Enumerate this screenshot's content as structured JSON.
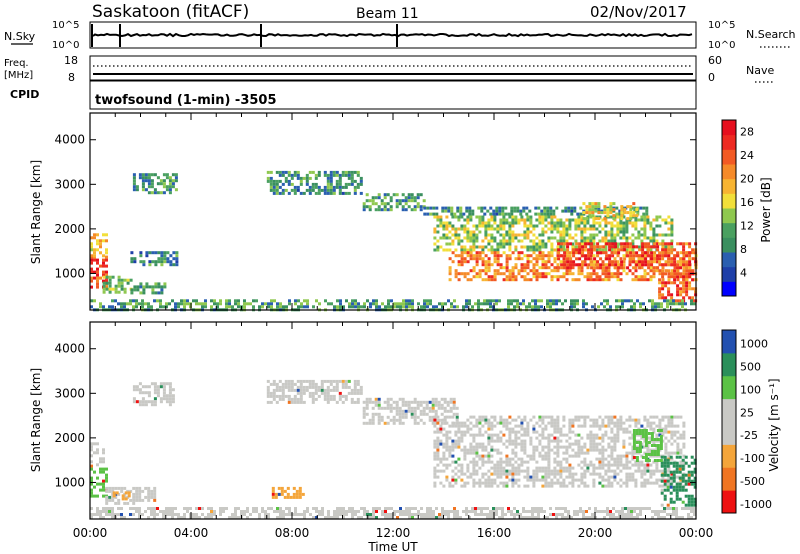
{
  "header": {
    "station": "Saskatoon (fitACF)",
    "beam": "Beam 11",
    "date": "02/Nov/2017"
  },
  "top_panels": {
    "nsky_label": "N.Sky",
    "nsky_ticks": [
      "10^5",
      "10^0"
    ],
    "nsearch_label": "N.Search",
    "nsearch_ticks": [
      "10^5",
      "10^0"
    ],
    "freq_label": "Freq.",
    "freq_unit": "[MHz]",
    "freq_ticks": [
      "18",
      "8"
    ],
    "nave_label": "Nave",
    "nave_ticks": [
      "60",
      "0"
    ],
    "cpid_label": "CPID",
    "cpid_value": "twofsound (1-min) -3505"
  },
  "colors": {
    "power_scale": [
      "#0000ff",
      "#1e3fa8",
      "#2a5fb0",
      "#3a8f5f",
      "#4aa060",
      "#8fc84f",
      "#f2df3a",
      "#f7b432",
      "#f58a29",
      "#f25a24",
      "#ee2a22",
      "#e60f1f"
    ],
    "velocity_scale": [
      "#ee1111",
      "#f07522",
      "#f4a53a",
      "#c9c9c5",
      "#c9c9c5",
      "#5bc245",
      "#2a8f5a",
      "#2250b0"
    ]
  },
  "chart_data": [
    {
      "type": "heatmap",
      "panel": "power",
      "ylabel": "Slant Range [km]",
      "yticks": [
        1000,
        2000,
        3000,
        4000
      ],
      "ylim": [
        180,
        4600
      ],
      "xlim": [
        0,
        24
      ],
      "xtick_labels": [
        "00:00",
        "04:00",
        "08:00",
        "12:00",
        "16:00",
        "20:00",
        "00:00"
      ],
      "colorbar_label": "Power [dB]",
      "colorbar_ticks": [
        "4",
        "8",
        "12",
        "16",
        "20",
        "24",
        "28"
      ],
      "colorbar_range": [
        0,
        30
      ],
      "regions": [
        {
          "t0": 0.0,
          "t1": 0.7,
          "r0": 700,
          "r1": 1400,
          "level": 26
        },
        {
          "t0": 0.0,
          "t1": 0.6,
          "r0": 1400,
          "r1": 1900,
          "level": 18
        },
        {
          "t0": 0.5,
          "t1": 1.6,
          "r0": 550,
          "r1": 950,
          "level": 12
        },
        {
          "t0": 1.6,
          "t1": 3.0,
          "r0": 550,
          "r1": 800,
          "level": 9
        },
        {
          "t0": 1.6,
          "t1": 3.4,
          "r0": 1200,
          "r1": 1500,
          "level": 8
        },
        {
          "t0": 1.7,
          "t1": 3.4,
          "r0": 2800,
          "r1": 3250,
          "level": 9
        },
        {
          "t0": 7.0,
          "t1": 10.8,
          "r0": 2800,
          "r1": 3300,
          "level": 9
        },
        {
          "t0": 10.8,
          "t1": 13.2,
          "r0": 2400,
          "r1": 2800,
          "level": 10
        },
        {
          "t0": 13.2,
          "t1": 22.0,
          "r0": 2300,
          "r1": 2500,
          "level": 9
        },
        {
          "t0": 13.6,
          "t1": 23.0,
          "r0": 1500,
          "r1": 2300,
          "level": 14
        },
        {
          "t0": 14.2,
          "t1": 24.0,
          "r0": 850,
          "r1": 1500,
          "level": 22
        },
        {
          "t0": 18.5,
          "t1": 22.5,
          "r0": 1100,
          "r1": 1700,
          "level": 26
        },
        {
          "t0": 22.5,
          "t1": 24.0,
          "r0": 400,
          "r1": 1700,
          "level": 25
        },
        {
          "t0": 19.5,
          "t1": 20.8,
          "r0": 2200,
          "r1": 2600,
          "level": 17
        },
        {
          "t0": 21.0,
          "t1": 21.6,
          "r0": 2200,
          "r1": 2600,
          "level": 19
        },
        {
          "t0": 0.0,
          "t1": 24.0,
          "r0": 200,
          "r1": 420,
          "level": 10
        }
      ]
    },
    {
      "type": "heatmap",
      "panel": "velocity",
      "ylabel": "Slant Range [km]",
      "yticks": [
        1000,
        2000,
        3000,
        4000
      ],
      "ylim": [
        180,
        4600
      ],
      "xlim": [
        0,
        24
      ],
      "xlabel": "Time UT",
      "xtick_labels": [
        "00:00",
        "04:00",
        "08:00",
        "12:00",
        "16:00",
        "20:00",
        "00:00"
      ],
      "colorbar_label": "Velocity [m s⁻¹]",
      "colorbar_ticks": [
        "1000",
        "500",
        "100",
        "25",
        "-25",
        "-100",
        "-500",
        "-1000"
      ],
      "regions": [
        {
          "t0": 0.0,
          "t1": 0.6,
          "r0": 700,
          "r1": 1400,
          "level": "100"
        },
        {
          "t0": 0.0,
          "t1": 0.5,
          "r0": 1400,
          "r1": 1900,
          "level": "25"
        },
        {
          "t0": 0.6,
          "t1": 2.6,
          "r0": 500,
          "r1": 900,
          "level": "25"
        },
        {
          "t0": 0.9,
          "t1": 1.6,
          "r0": 600,
          "r1": 800,
          "level": "-100"
        },
        {
          "t0": 1.7,
          "t1": 3.3,
          "r0": 2750,
          "r1": 3250,
          "level": "25"
        },
        {
          "t0": 7.0,
          "t1": 10.8,
          "r0": 2800,
          "r1": 3300,
          "level": "25"
        },
        {
          "t0": 10.8,
          "t1": 14.5,
          "r0": 2350,
          "r1": 2900,
          "level": "25"
        },
        {
          "t0": 13.6,
          "t1": 23.5,
          "r0": 900,
          "r1": 2500,
          "level": "25"
        },
        {
          "t0": 22.6,
          "t1": 24.0,
          "r0": 500,
          "r1": 1600,
          "level": "500"
        },
        {
          "t0": 21.5,
          "t1": 22.6,
          "r0": 1500,
          "r1": 2200,
          "level": "100"
        },
        {
          "t0": 7.2,
          "t1": 8.4,
          "r0": 650,
          "r1": 900,
          "level": "-100"
        },
        {
          "t0": 0.0,
          "t1": 24.0,
          "r0": 200,
          "r1": 450,
          "level": "25"
        }
      ]
    }
  ]
}
